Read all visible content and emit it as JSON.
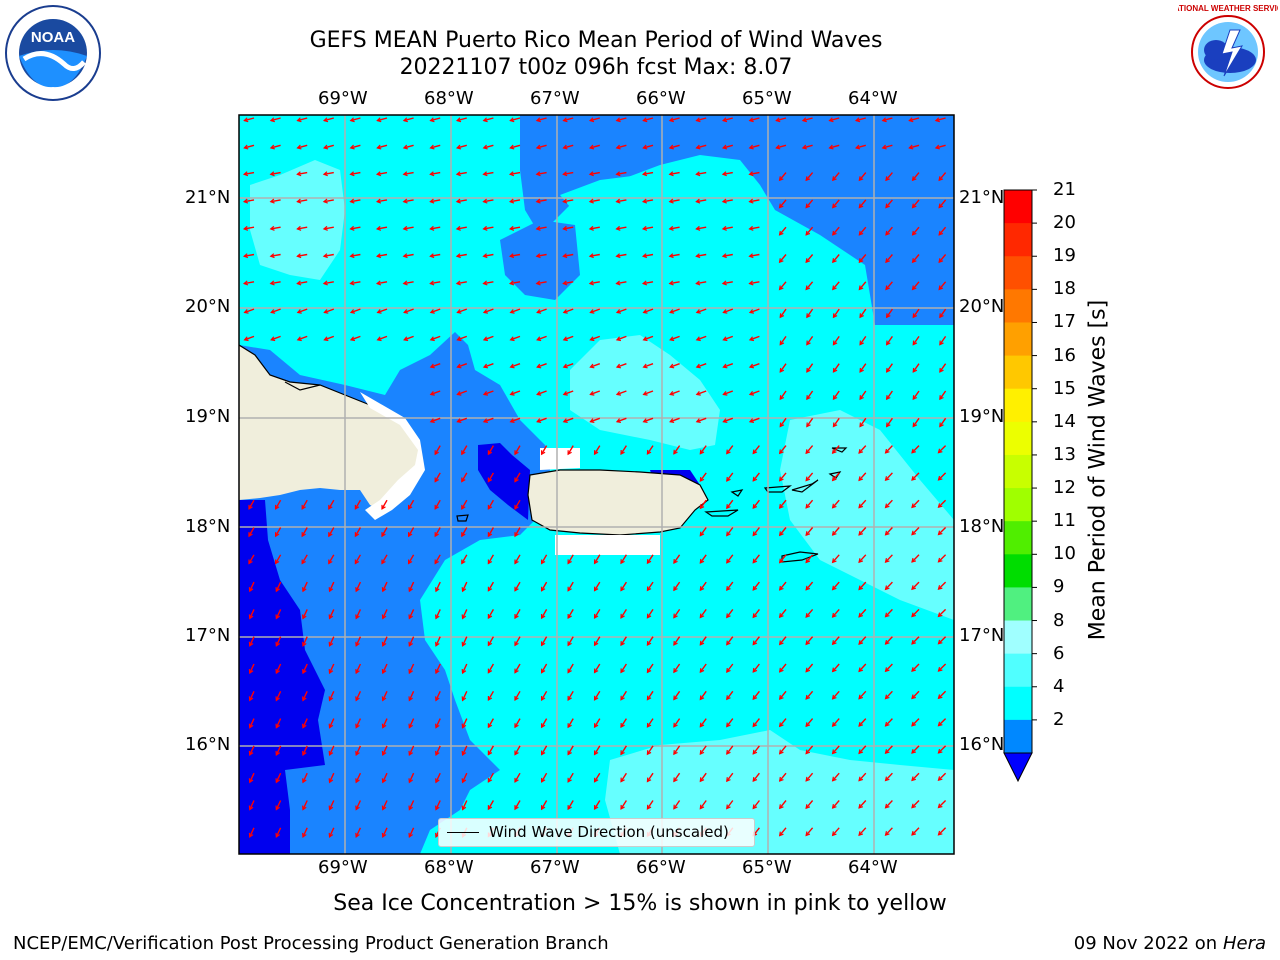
{
  "title_line1": "GEFS MEAN Puerto Rico Mean Period of Wind Waves",
  "title_line2": "20221107 t00z 096h fcst   Max: 8.07",
  "lon_ticks": [
    "69°W",
    "68°W",
    "67°W",
    "66°W",
    "65°W",
    "64°W"
  ],
  "lat_ticks": [
    "21°N",
    "20°N",
    "19°N",
    "18°N",
    "17°N",
    "16°N"
  ],
  "legend": {
    "label": "Wind Wave Direction (unscaled)"
  },
  "colorbar": {
    "label": "Mean Period of Wind Waves [s]",
    "ticks": [
      "21",
      "20",
      "19",
      "18",
      "17",
      "16",
      "15",
      "14",
      "13",
      "12",
      "11",
      "10",
      "9",
      "8",
      "6",
      "4",
      "2"
    ],
    "colors": [
      "#ff0000",
      "#ff2800",
      "#ff5000",
      "#ff7800",
      "#ffa000",
      "#ffc800",
      "#fff000",
      "#ecff00",
      "#c8ff00",
      "#a0ff00",
      "#50ee00",
      "#00dd00",
      "#50f080",
      "#a0ffff",
      "#50ffff",
      "#00ffff",
      "#0088ff"
    ],
    "extend_color": "#0000ff"
  },
  "map_colors": {
    "deep_blue": "#0000ee",
    "mid_blue": "#1a84ff",
    "cyan": "#00ffff",
    "light_cyan": "#66ffff",
    "land": "#f0eedc",
    "arrow": "#ff0000",
    "grid": "#b0b0b0"
  },
  "subtitle": "Sea Ice Concentration > 15% is shown in pink to yellow",
  "footer_left": "NCEP/EMC/Verification Post Processing Product Generation Branch",
  "footer_date": "09 Nov 2022 on",
  "footer_machine": "Hera",
  "logos": {
    "left": "NOAA",
    "right": "NATIONAL WEATHER SERVICE"
  }
}
